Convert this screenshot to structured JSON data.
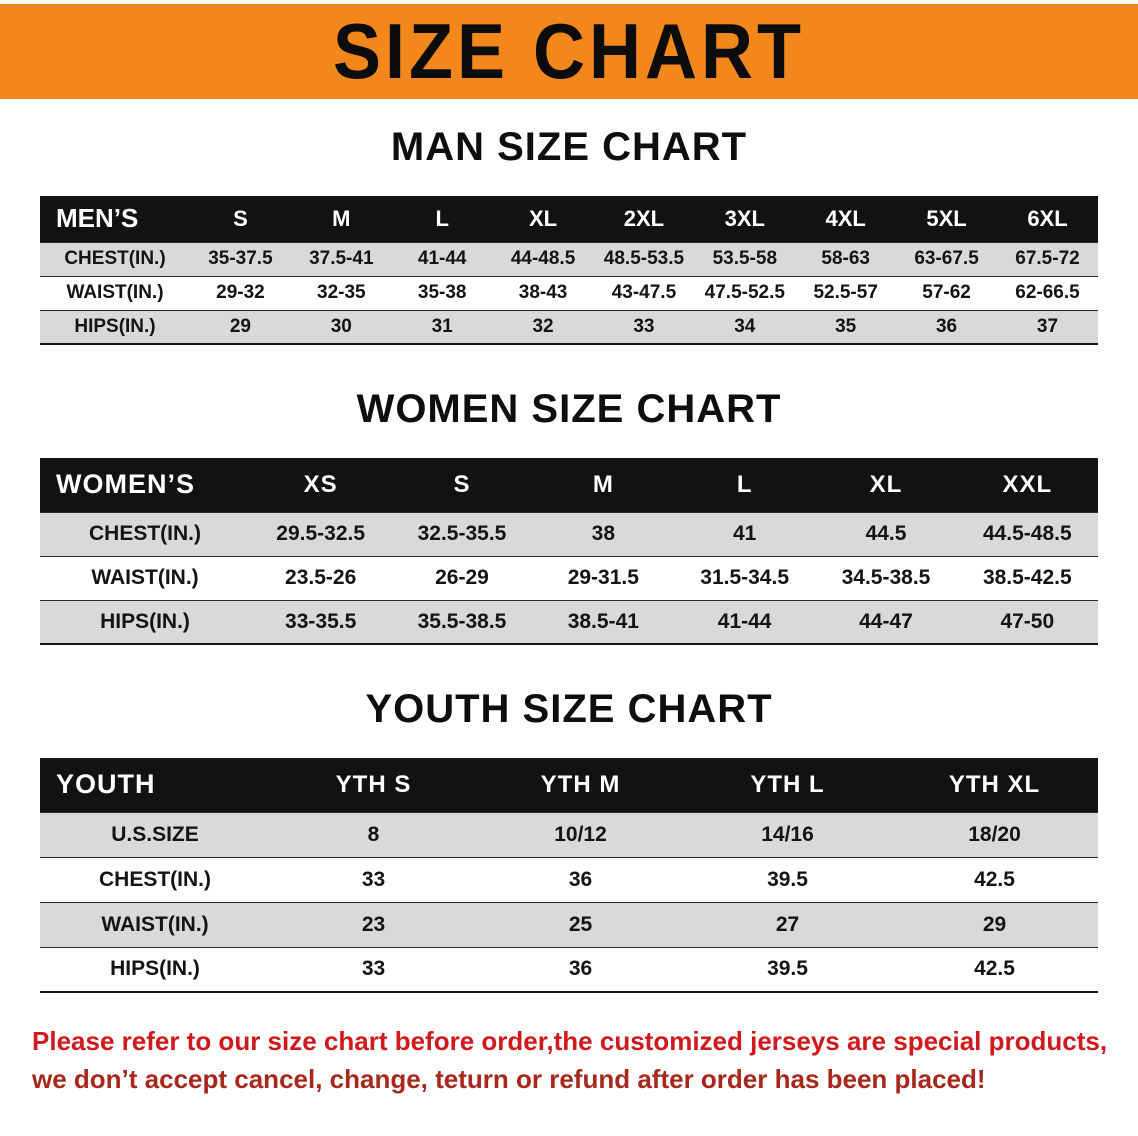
{
  "banner": {
    "title": "SIZE CHART"
  },
  "sections": [
    {
      "id": "men",
      "heading": "MAN SIZE CHART",
      "table": {
        "header": [
          "MEN’S",
          "S",
          "M",
          "L",
          "XL",
          "2XL",
          "3XL",
          "4XL",
          "5XL",
          "6XL"
        ],
        "rows": [
          {
            "label": "CHEST(IN.)",
            "values": [
              "35-37.5",
              "37.5-41",
              "41-44",
              "44-48.5",
              "48.5-53.5",
              "53.5-58",
              "58-63",
              "63-67.5",
              "67.5-72"
            ]
          },
          {
            "label": "WAIST(IN.)",
            "values": [
              "29-32",
              "32-35",
              "35-38",
              "38-43",
              "43-47.5",
              "47.5-52.5",
              "52.5-57",
              "57-62",
              "62-66.5"
            ]
          },
          {
            "label": "HIPS(IN.)",
            "values": [
              "29",
              "30",
              "31",
              "32",
              "33",
              "34",
              "35",
              "36",
              "37"
            ]
          }
        ]
      }
    },
    {
      "id": "women",
      "heading": "WOMEN SIZE CHART",
      "table": {
        "header": [
          "WOMEN’S",
          "XS",
          "S",
          "M",
          "L",
          "XL",
          "XXL"
        ],
        "rows": [
          {
            "label": "CHEST(IN.)",
            "values": [
              "29.5-32.5",
              "32.5-35.5",
              "38",
              "41",
              "44.5",
              "44.5-48.5"
            ]
          },
          {
            "label": "WAIST(IN.)",
            "values": [
              "23.5-26",
              "26-29",
              "29-31.5",
              "31.5-34.5",
              "34.5-38.5",
              "38.5-42.5"
            ]
          },
          {
            "label": "HIPS(IN.)",
            "values": [
              "33-35.5",
              "35.5-38.5",
              "38.5-41",
              "41-44",
              "44-47",
              "47-50"
            ]
          }
        ]
      }
    },
    {
      "id": "youth",
      "heading": "YOUTH SIZE CHART",
      "table": {
        "header": [
          "YOUTH",
          "YTH S",
          "YTH M",
          "YTH L",
          "YTH XL"
        ],
        "rows": [
          {
            "label": "U.S.SIZE",
            "values": [
              "8",
              "10/12",
              "14/16",
              "18/20"
            ]
          },
          {
            "label": "CHEST(IN.)",
            "values": [
              "33",
              "36",
              "39.5",
              "42.5"
            ]
          },
          {
            "label": "WAIST(IN.)",
            "values": [
              "23",
              "25",
              "27",
              "29"
            ]
          },
          {
            "label": "HIPS(IN.)",
            "values": [
              "33",
              "36",
              "39.5",
              "42.5"
            ]
          }
        ]
      }
    }
  ],
  "footer": {
    "line1": "Please refer to our size chart before order,the customized jerseys are special products,",
    "line2": "we don’t accept cancel, change, teturn or refund after order has been placed!"
  },
  "colors": {
    "banner-orange": "#f2871c",
    "header-black": "#121212",
    "stripe-gray": "#d9d9d9",
    "note-red": "#d11a1c",
    "note-red-dark": "#a8281c"
  }
}
